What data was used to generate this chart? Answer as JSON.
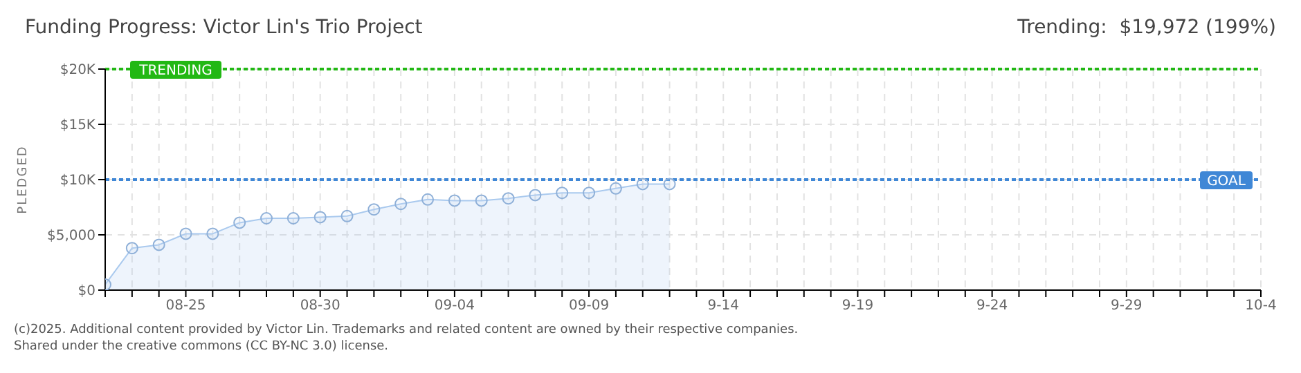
{
  "chart_data": {
    "type": "area",
    "title": "Funding Progress: Victor Lin's Trio Project",
    "subtitle": "Trending:  $19,972 (199%)",
    "ylabel": "PLEDGED",
    "annotations": [
      "(c)2025. Additional content provided by Victor Lin. Trademarks and related content are owned by their respective companies.",
      "Shared under the creative commons (CC BY-NC 3.0) license."
    ],
    "x": [
      "--08-22",
      "--08-23",
      "--08-24",
      "--08-25",
      "--08-26",
      "--08-27",
      "--08-28",
      "--08-29",
      "--08-30",
      "--08-31",
      "--09-01",
      "--09-02",
      "--09-03",
      "--09-04",
      "--09-05",
      "--09-06",
      "--09-07",
      "--09-08",
      "--09-09",
      "--09-10",
      "--09-11",
      "--09-12"
    ],
    "series": [
      {
        "color": "#a9c9ee",
        "values": [
          500,
          3800,
          4100,
          5100,
          5100,
          6100,
          6500,
          6500,
          6600,
          6700,
          7300,
          7800,
          8200,
          8100,
          8100,
          8300,
          8600,
          8800,
          8800,
          9200,
          9600,
          9600
        ]
      }
    ],
    "xlim": [
      "--08-22",
      "--10-04"
    ],
    "xticks": [
      {
        "value": "--08-22",
        "label": null
      },
      {
        "value": "--08-23",
        "label": null
      },
      {
        "value": "--08-24",
        "label": null
      },
      {
        "value": "--08-25",
        "label": "08-25"
      },
      {
        "value": "--08-26",
        "label": null
      },
      {
        "value": "--08-27",
        "label": null
      },
      {
        "value": "--08-28",
        "label": null
      },
      {
        "value": "--08-29",
        "label": null
      },
      {
        "value": "--08-30",
        "label": "08-30"
      },
      {
        "value": "--08-31",
        "label": null
      },
      {
        "value": "--09-01",
        "label": null
      },
      {
        "value": "--09-02",
        "label": null
      },
      {
        "value": "--09-03",
        "label": null
      },
      {
        "value": "--09-04",
        "label": "09-04"
      },
      {
        "value": "--09-05",
        "label": null
      },
      {
        "value": "--09-06",
        "label": null
      },
      {
        "value": "--09-07",
        "label": null
      },
      {
        "value": "--09-08",
        "label": null
      },
      {
        "value": "--09-09",
        "label": "09-09"
      },
      {
        "value": "--09-10",
        "label": null
      },
      {
        "value": "--09-11",
        "label": null
      },
      {
        "value": "--09-12",
        "label": null
      },
      {
        "value": "--09-13",
        "label": null
      },
      {
        "value": "--09-14",
        "label": "9-14"
      },
      {
        "value": "--09-15",
        "label": null
      },
      {
        "value": "--09-16",
        "label": null
      },
      {
        "value": "--09-17",
        "label": null
      },
      {
        "value": "--09-18",
        "label": null
      },
      {
        "value": "--09-19",
        "label": "9-19"
      },
      {
        "value": "--09-20",
        "label": null
      },
      {
        "value": "--09-21",
        "label": null
      },
      {
        "value": "--09-22",
        "label": null
      },
      {
        "value": "--09-23",
        "label": null
      },
      {
        "value": "--09-24",
        "label": "9-24"
      },
      {
        "value": "--09-25",
        "label": null
      },
      {
        "value": "--09-26",
        "label": null
      },
      {
        "value": "--09-27",
        "label": null
      },
      {
        "value": "--09-28",
        "label": null
      },
      {
        "value": "--09-29",
        "label": "9-29"
      },
      {
        "value": "--09-30",
        "label": null
      },
      {
        "value": "--10-01",
        "label": null
      },
      {
        "value": "--10-02",
        "label": null
      },
      {
        "value": "--10-03",
        "label": null
      },
      {
        "value": "--10-04",
        "label": "10-4"
      }
    ],
    "ylim": [
      0,
      20000
    ],
    "yticks": [
      {
        "value": 0,
        "label": "$0"
      },
      {
        "value": 5000,
        "label": "$5,000"
      },
      {
        "value": 10000,
        "label": "$10K"
      },
      {
        "value": 15000,
        "label": "$15K"
      },
      {
        "value": 20000,
        "label": "$20K"
      }
    ],
    "ref_lines": [
      {
        "axis": "y",
        "value": 20000,
        "label": "TRENDING",
        "color": "#22b814",
        "line_style": "dotted"
      },
      {
        "axis": "y",
        "value": 10000,
        "label": "GOAL",
        "color": "#3f87d6",
        "line_style": "dotted"
      }
    ],
    "grid": true,
    "marker": "circle",
    "line_style": "solid"
  }
}
